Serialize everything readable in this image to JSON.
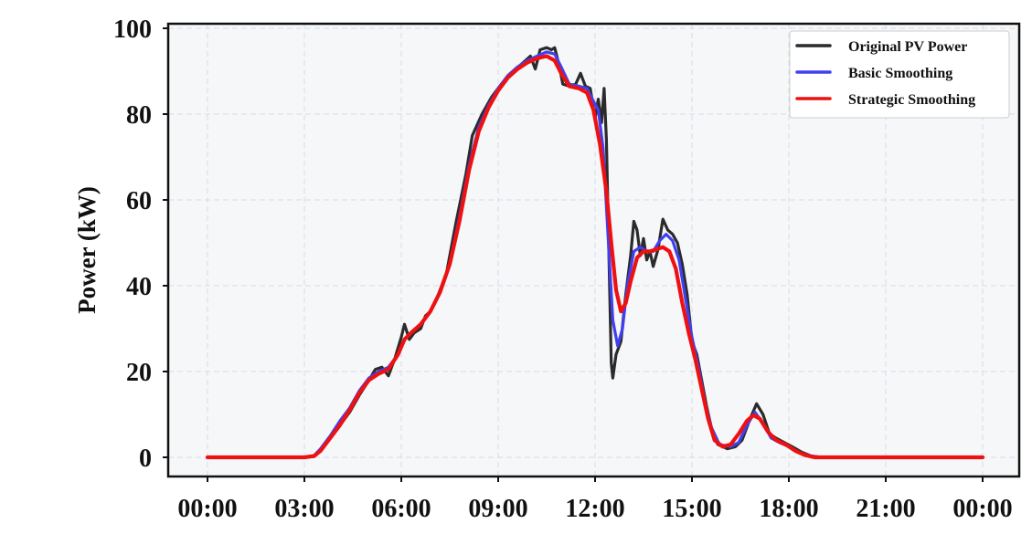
{
  "chart_data": {
    "type": "line",
    "title": "",
    "xlabel": "",
    "ylabel": "Power (kW)",
    "ylim": [
      0,
      100
    ],
    "xlim": [
      -1.5,
      26.4
    ],
    "yticks": [
      0,
      20,
      40,
      60,
      80,
      100
    ],
    "xticks": [
      {
        "value": 0,
        "label": "00:00"
      },
      {
        "value": 3,
        "label": "03:00"
      },
      {
        "value": 6,
        "label": "06:00"
      },
      {
        "value": 9,
        "label": "09:00"
      },
      {
        "value": 12,
        "label": "12:00"
      },
      {
        "value": 15,
        "label": "15:00"
      },
      {
        "value": 18,
        "label": "18:00"
      },
      {
        "value": 21,
        "label": "21:00"
      },
      {
        "value": 24,
        "label": "00:00"
      }
    ],
    "grid": true,
    "legend_position": "top-right",
    "series": [
      {
        "name": "Original PV Power",
        "color": "#2b2b2b",
        "points": [
          [
            0.0,
            0
          ],
          [
            3.0,
            0
          ],
          [
            3.3,
            0.2
          ],
          [
            3.5,
            1.5
          ],
          [
            3.8,
            4.5
          ],
          [
            4.1,
            7.5
          ],
          [
            4.4,
            10.5
          ],
          [
            4.7,
            14.5
          ],
          [
            5.0,
            18
          ],
          [
            5.2,
            20.5
          ],
          [
            5.4,
            21
          ],
          [
            5.6,
            19
          ],
          [
            5.8,
            23
          ],
          [
            6.0,
            28
          ],
          [
            6.1,
            31
          ],
          [
            6.25,
            27.5
          ],
          [
            6.4,
            29
          ],
          [
            6.6,
            30
          ],
          [
            6.75,
            33
          ],
          [
            6.9,
            34
          ],
          [
            7.1,
            37
          ],
          [
            7.4,
            43
          ],
          [
            7.7,
            55
          ],
          [
            8.0,
            66
          ],
          [
            8.2,
            75
          ],
          [
            8.5,
            80
          ],
          [
            8.8,
            84
          ],
          [
            9.1,
            87
          ],
          [
            9.4,
            89.5
          ],
          [
            9.7,
            91.5
          ],
          [
            10.0,
            93.5
          ],
          [
            10.15,
            90.5
          ],
          [
            10.3,
            95
          ],
          [
            10.5,
            95.5
          ],
          [
            10.65,
            95
          ],
          [
            10.75,
            95.5
          ],
          [
            10.9,
            91
          ],
          [
            11.0,
            87
          ],
          [
            11.2,
            86.5
          ],
          [
            11.4,
            87
          ],
          [
            11.55,
            89.5
          ],
          [
            11.7,
            86.5
          ],
          [
            11.85,
            86
          ],
          [
            12.0,
            79
          ],
          [
            12.1,
            83.5
          ],
          [
            12.2,
            78
          ],
          [
            12.28,
            86
          ],
          [
            12.35,
            74
          ],
          [
            12.45,
            40
          ],
          [
            12.5,
            22
          ],
          [
            12.55,
            18.5
          ],
          [
            12.65,
            24
          ],
          [
            12.8,
            27
          ],
          [
            12.95,
            38
          ],
          [
            13.1,
            47
          ],
          [
            13.2,
            55
          ],
          [
            13.3,
            53
          ],
          [
            13.4,
            47
          ],
          [
            13.5,
            51
          ],
          [
            13.6,
            46
          ],
          [
            13.7,
            48
          ],
          [
            13.8,
            44.5
          ],
          [
            13.95,
            48.5
          ],
          [
            14.1,
            55.5
          ],
          [
            14.25,
            53
          ],
          [
            14.4,
            52
          ],
          [
            14.55,
            50
          ],
          [
            14.7,
            45
          ],
          [
            14.85,
            38
          ],
          [
            15.0,
            27
          ],
          [
            15.15,
            24
          ],
          [
            15.3,
            18
          ],
          [
            15.45,
            12
          ],
          [
            15.6,
            7
          ],
          [
            15.8,
            3
          ],
          [
            16.1,
            2
          ],
          [
            16.35,
            2.5
          ],
          [
            16.55,
            4
          ],
          [
            16.8,
            9
          ],
          [
            17.0,
            12.5
          ],
          [
            17.2,
            10
          ],
          [
            17.4,
            5.5
          ],
          [
            17.6,
            4.5
          ],
          [
            17.85,
            3.5
          ],
          [
            18.1,
            2.5
          ],
          [
            18.4,
            1.2
          ],
          [
            18.7,
            0.3
          ],
          [
            19.0,
            0
          ],
          [
            24.0,
            0
          ]
        ]
      },
      {
        "name": "Basic Smoothing",
        "color": "#4040f0",
        "points": [
          [
            0.0,
            0
          ],
          [
            3.0,
            0
          ],
          [
            3.3,
            0.4
          ],
          [
            3.5,
            2
          ],
          [
            3.8,
            5
          ],
          [
            4.1,
            8.5
          ],
          [
            4.4,
            11.5
          ],
          [
            4.7,
            15.5
          ],
          [
            5.0,
            18.5
          ],
          [
            5.3,
            20
          ],
          [
            5.6,
            21
          ],
          [
            5.9,
            24
          ],
          [
            6.1,
            27.5
          ],
          [
            6.3,
            29
          ],
          [
            6.6,
            31
          ],
          [
            6.9,
            34
          ],
          [
            7.2,
            38.5
          ],
          [
            7.5,
            45
          ],
          [
            7.8,
            56
          ],
          [
            8.1,
            68
          ],
          [
            8.4,
            77
          ],
          [
            8.7,
            82
          ],
          [
            9.0,
            86
          ],
          [
            9.3,
            89
          ],
          [
            9.6,
            91
          ],
          [
            9.9,
            92.5
          ],
          [
            10.2,
            93.5
          ],
          [
            10.5,
            94.5
          ],
          [
            10.75,
            94
          ],
          [
            10.95,
            91
          ],
          [
            11.2,
            87
          ],
          [
            11.5,
            86.5
          ],
          [
            11.75,
            86
          ],
          [
            11.95,
            83
          ],
          [
            12.1,
            81
          ],
          [
            12.25,
            72
          ],
          [
            12.4,
            52
          ],
          [
            12.55,
            32
          ],
          [
            12.7,
            26
          ],
          [
            12.85,
            30
          ],
          [
            13.0,
            40
          ],
          [
            13.2,
            48
          ],
          [
            13.4,
            49
          ],
          [
            13.6,
            48
          ],
          [
            13.8,
            48
          ],
          [
            14.0,
            50.5
          ],
          [
            14.2,
            52
          ],
          [
            14.4,
            50.5
          ],
          [
            14.6,
            46
          ],
          [
            14.8,
            37
          ],
          [
            15.0,
            28
          ],
          [
            15.2,
            21
          ],
          [
            15.4,
            13
          ],
          [
            15.6,
            7
          ],
          [
            15.85,
            3
          ],
          [
            16.2,
            2.5
          ],
          [
            16.45,
            3.5
          ],
          [
            16.7,
            7.5
          ],
          [
            16.95,
            10.5
          ],
          [
            17.2,
            8
          ],
          [
            17.45,
            4.5
          ],
          [
            17.7,
            3.5
          ],
          [
            18.0,
            2.5
          ],
          [
            18.35,
            1
          ],
          [
            18.7,
            0.3
          ],
          [
            19.0,
            0
          ],
          [
            24.0,
            0
          ]
        ]
      },
      {
        "name": "Strategic Smoothing",
        "color": "#ee1111",
        "points": [
          [
            0.0,
            0
          ],
          [
            3.0,
            0
          ],
          [
            3.3,
            0.3
          ],
          [
            3.5,
            1.5
          ],
          [
            3.8,
            4.5
          ],
          [
            4.1,
            7.5
          ],
          [
            4.4,
            11
          ],
          [
            4.7,
            15
          ],
          [
            5.0,
            18
          ],
          [
            5.3,
            19.5
          ],
          [
            5.6,
            20.5
          ],
          [
            5.9,
            24
          ],
          [
            6.1,
            27.5
          ],
          [
            6.3,
            29
          ],
          [
            6.6,
            31
          ],
          [
            6.9,
            34
          ],
          [
            7.2,
            38.5
          ],
          [
            7.5,
            45
          ],
          [
            7.8,
            55
          ],
          [
            8.1,
            67
          ],
          [
            8.4,
            76
          ],
          [
            8.7,
            81.5
          ],
          [
            9.0,
            85.5
          ],
          [
            9.3,
            88.5
          ],
          [
            9.6,
            90.5
          ],
          [
            9.9,
            92
          ],
          [
            10.2,
            93
          ],
          [
            10.5,
            93.5
          ],
          [
            10.75,
            92.5
          ],
          [
            10.95,
            89.5
          ],
          [
            11.2,
            86.5
          ],
          [
            11.5,
            86
          ],
          [
            11.75,
            85
          ],
          [
            11.95,
            81
          ],
          [
            12.15,
            73
          ],
          [
            12.35,
            62
          ],
          [
            12.5,
            50
          ],
          [
            12.65,
            39
          ],
          [
            12.8,
            34
          ],
          [
            12.95,
            36
          ],
          [
            13.1,
            41
          ],
          [
            13.3,
            46.5
          ],
          [
            13.5,
            48
          ],
          [
            13.7,
            48
          ],
          [
            13.9,
            48.5
          ],
          [
            14.1,
            49
          ],
          [
            14.3,
            48
          ],
          [
            14.5,
            44
          ],
          [
            14.7,
            36
          ],
          [
            14.9,
            29
          ],
          [
            15.1,
            23
          ],
          [
            15.3,
            16
          ],
          [
            15.5,
            9
          ],
          [
            15.7,
            4
          ],
          [
            15.95,
            2.5
          ],
          [
            16.2,
            3
          ],
          [
            16.45,
            5.5
          ],
          [
            16.7,
            8.5
          ],
          [
            16.9,
            9.8
          ],
          [
            17.1,
            9
          ],
          [
            17.35,
            6
          ],
          [
            17.6,
            4
          ],
          [
            17.9,
            3
          ],
          [
            18.2,
            1.5
          ],
          [
            18.5,
            0.5
          ],
          [
            18.8,
            0
          ],
          [
            24.0,
            0
          ]
        ]
      }
    ]
  }
}
